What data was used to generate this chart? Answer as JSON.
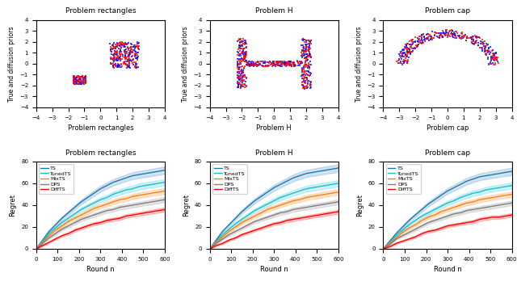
{
  "titles_top": [
    "Problem rectangles",
    "Problem H",
    "Problem cap"
  ],
  "titles_bottom": [
    "Problem rectangles",
    "Problem H",
    "Problem cap"
  ],
  "ylabel_top": "True and diffusion priors",
  "ylabel_bottom": "Regret",
  "xlabel_bottom": "Round n",
  "line_colors": [
    "#1f77b4",
    "#17becf",
    "#ff7f0e",
    "#7f7f7f",
    "#ff0000"
  ],
  "line_labels": [
    "TS",
    "TunedTS",
    "MixTS",
    "DPS",
    "DiffTS"
  ],
  "regret_rect": {
    "TS": [
      0,
      8,
      16,
      22,
      28,
      33,
      38,
      43,
      47,
      51,
      55,
      58,
      61,
      63,
      65,
      67,
      68,
      69,
      70,
      71,
      72
    ],
    "TunedTS": [
      0,
      7,
      14,
      19,
      24,
      28,
      32,
      36,
      39,
      42,
      45,
      47,
      50,
      52,
      54,
      55,
      57,
      58,
      59,
      60,
      61
    ],
    "MixTS": [
      0,
      6,
      12,
      17,
      21,
      25,
      28,
      31,
      34,
      37,
      39,
      41,
      43,
      45,
      46,
      48,
      49,
      50,
      51,
      52,
      53
    ],
    "DPS": [
      0,
      5,
      10,
      14,
      18,
      21,
      24,
      27,
      29,
      31,
      33,
      35,
      36,
      38,
      39,
      40,
      41,
      42,
      43,
      44,
      45
    ],
    "DiffTS": [
      0,
      3,
      6,
      9,
      12,
      14,
      17,
      19,
      21,
      23,
      24,
      26,
      27,
      28,
      30,
      31,
      32,
      33,
      34,
      35,
      36
    ]
  },
  "regret_H": {
    "TS": [
      0,
      8,
      16,
      22,
      28,
      34,
      39,
      44,
      48,
      52,
      56,
      59,
      62,
      65,
      67,
      69,
      70,
      71,
      72,
      73,
      74
    ],
    "TunedTS": [
      0,
      7,
      13,
      18,
      23,
      27,
      31,
      35,
      38,
      41,
      44,
      47,
      49,
      51,
      53,
      55,
      56,
      57,
      58,
      59,
      60
    ],
    "MixTS": [
      0,
      6,
      11,
      16,
      20,
      24,
      27,
      30,
      33,
      36,
      38,
      40,
      42,
      44,
      45,
      47,
      48,
      49,
      50,
      51,
      52
    ],
    "DPS": [
      0,
      5,
      9,
      13,
      16,
      19,
      22,
      25,
      27,
      29,
      31,
      33,
      34,
      36,
      37,
      38,
      39,
      40,
      41,
      42,
      43
    ],
    "DiffTS": [
      0,
      3,
      5,
      8,
      10,
      13,
      15,
      17,
      19,
      21,
      23,
      24,
      26,
      27,
      28,
      29,
      30,
      31,
      32,
      33,
      34
    ]
  },
  "regret_cap": {
    "TS": [
      0,
      7,
      14,
      20,
      26,
      31,
      36,
      41,
      45,
      49,
      53,
      56,
      59,
      62,
      64,
      66,
      67,
      68,
      69,
      70,
      71
    ],
    "TunedTS": [
      0,
      6,
      12,
      17,
      22,
      26,
      30,
      33,
      36,
      39,
      42,
      44,
      47,
      49,
      51,
      52,
      54,
      55,
      56,
      57,
      58
    ],
    "MixTS": [
      0,
      5,
      10,
      15,
      19,
      22,
      26,
      29,
      31,
      34,
      36,
      38,
      40,
      42,
      43,
      45,
      46,
      47,
      48,
      49,
      50
    ],
    "DPS": [
      0,
      4,
      9,
      12,
      15,
      18,
      21,
      24,
      26,
      28,
      30,
      32,
      33,
      35,
      36,
      37,
      38,
      39,
      40,
      41,
      42
    ],
    "DiffTS": [
      0,
      2,
      5,
      7,
      9,
      11,
      14,
      16,
      17,
      19,
      21,
      22,
      23,
      24,
      25,
      27,
      28,
      29,
      29,
      30,
      31
    ]
  }
}
